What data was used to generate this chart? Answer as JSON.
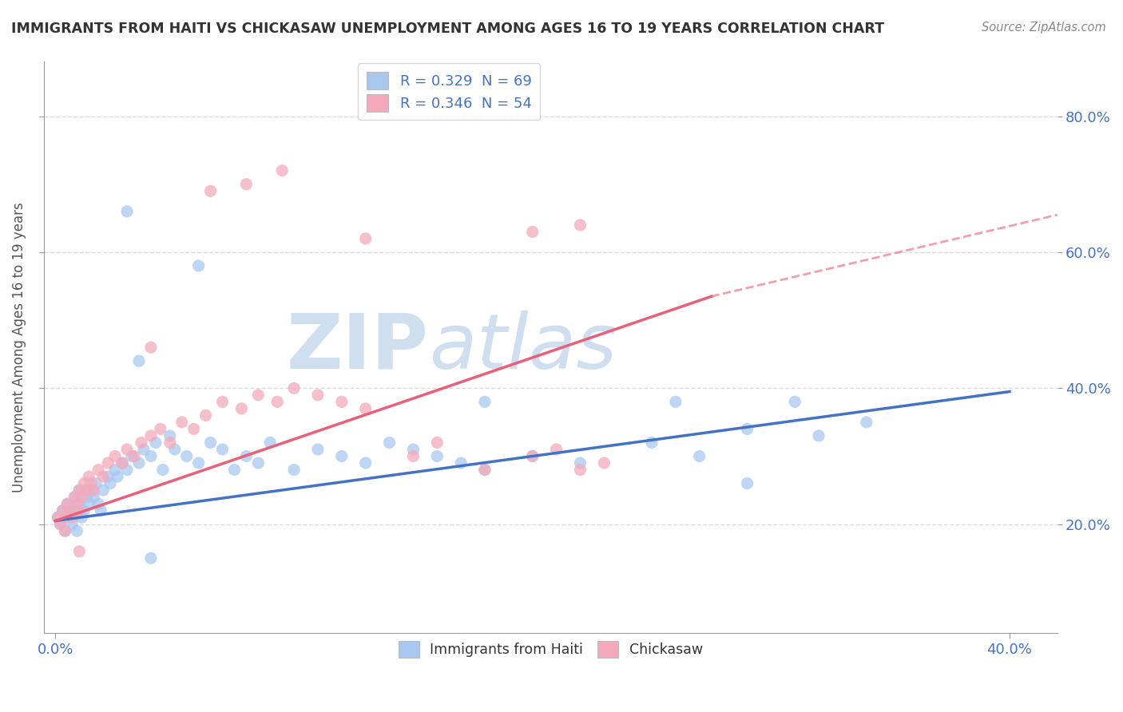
{
  "title": "IMMIGRANTS FROM HAITI VS CHICKASAW UNEMPLOYMENT AMONG AGES 16 TO 19 YEARS CORRELATION CHART",
  "source": "Source: ZipAtlas.com",
  "ylabel": "Unemployment Among Ages 16 to 19 years",
  "legend_r1": "R = 0.329  N = 69",
  "legend_r2": "R = 0.346  N = 54",
  "blue_color": "#A8C8F0",
  "pink_color": "#F4AABB",
  "blue_line_color": "#4472C4",
  "pink_line_color": "#E8607A",
  "title_color": "#404040",
  "axis_color": "#999999",
  "grid_color": "#DDDDDD",
  "watermark_color": "#D0DFF0",
  "xlim": [
    -0.005,
    0.42
  ],
  "ylim": [
    0.04,
    0.88
  ],
  "ytick_values": [
    0.2,
    0.4,
    0.6,
    0.8
  ],
  "ytick_labels": [
    "20.0%",
    "40.0%",
    "60.0%",
    "80.0%"
  ],
  "blue_x": [
    0.001,
    0.002,
    0.003,
    0.004,
    0.005,
    0.005,
    0.006,
    0.007,
    0.008,
    0.008,
    0.009,
    0.01,
    0.01,
    0.011,
    0.012,
    0.013,
    0.014,
    0.015,
    0.016,
    0.017,
    0.018,
    0.019,
    0.02,
    0.022,
    0.023,
    0.025,
    0.026,
    0.028,
    0.03,
    0.032,
    0.035,
    0.037,
    0.04,
    0.042,
    0.045,
    0.048,
    0.05,
    0.055,
    0.06,
    0.065,
    0.07,
    0.075,
    0.08,
    0.085,
    0.09,
    0.1,
    0.11,
    0.12,
    0.13,
    0.14,
    0.15,
    0.16,
    0.17,
    0.18,
    0.2,
    0.22,
    0.25,
    0.27,
    0.29,
    0.32,
    0.34,
    0.035,
    0.06,
    0.18,
    0.04,
    0.26,
    0.29,
    0.31,
    0.03
  ],
  "blue_y": [
    0.21,
    0.2,
    0.22,
    0.19,
    0.23,
    0.21,
    0.22,
    0.2,
    0.24,
    0.22,
    0.19,
    0.23,
    0.25,
    0.21,
    0.22,
    0.24,
    0.23,
    0.25,
    0.24,
    0.26,
    0.23,
    0.22,
    0.25,
    0.27,
    0.26,
    0.28,
    0.27,
    0.29,
    0.28,
    0.3,
    0.29,
    0.31,
    0.3,
    0.32,
    0.28,
    0.33,
    0.31,
    0.3,
    0.29,
    0.32,
    0.31,
    0.28,
    0.3,
    0.29,
    0.32,
    0.28,
    0.31,
    0.3,
    0.29,
    0.32,
    0.31,
    0.3,
    0.29,
    0.28,
    0.3,
    0.29,
    0.32,
    0.3,
    0.34,
    0.33,
    0.35,
    0.44,
    0.58,
    0.38,
    0.15,
    0.38,
    0.26,
    0.38,
    0.66
  ],
  "pink_x": [
    0.001,
    0.002,
    0.003,
    0.004,
    0.005,
    0.006,
    0.007,
    0.008,
    0.009,
    0.01,
    0.01,
    0.011,
    0.012,
    0.013,
    0.014,
    0.015,
    0.016,
    0.018,
    0.02,
    0.022,
    0.025,
    0.028,
    0.03,
    0.033,
    0.036,
    0.04,
    0.044,
    0.048,
    0.053,
    0.058,
    0.063,
    0.07,
    0.078,
    0.085,
    0.093,
    0.1,
    0.11,
    0.12,
    0.13,
    0.15,
    0.16,
    0.18,
    0.2,
    0.21,
    0.22,
    0.23,
    0.04,
    0.065,
    0.08,
    0.095,
    0.13,
    0.2,
    0.22,
    0.01
  ],
  "pink_y": [
    0.21,
    0.2,
    0.22,
    0.19,
    0.23,
    0.22,
    0.21,
    0.24,
    0.23,
    0.22,
    0.25,
    0.24,
    0.26,
    0.25,
    0.27,
    0.26,
    0.25,
    0.28,
    0.27,
    0.29,
    0.3,
    0.29,
    0.31,
    0.3,
    0.32,
    0.33,
    0.34,
    0.32,
    0.35,
    0.34,
    0.36,
    0.38,
    0.37,
    0.39,
    0.38,
    0.4,
    0.39,
    0.38,
    0.37,
    0.3,
    0.32,
    0.28,
    0.3,
    0.31,
    0.28,
    0.29,
    0.46,
    0.69,
    0.7,
    0.72,
    0.62,
    0.63,
    0.64,
    0.16
  ],
  "blue_line": {
    "x0": 0.0,
    "x1": 0.4,
    "y0": 0.205,
    "y1": 0.395
  },
  "pink_line_solid": {
    "x0": 0.0,
    "x1": 0.275,
    "y0": 0.205,
    "y1": 0.535
  },
  "pink_line_dashed": {
    "x0": 0.275,
    "x1": 0.42,
    "y0": 0.535,
    "y1": 0.655
  }
}
